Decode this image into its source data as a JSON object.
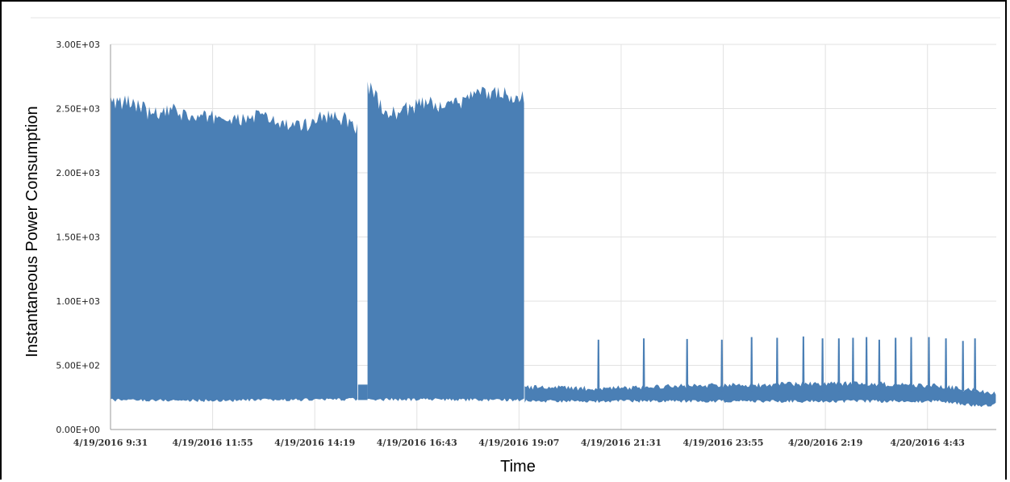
{
  "chart_data": {
    "type": "area",
    "title": "",
    "xlabel": "Time",
    "ylabel": "Instantaneous Power Consumption",
    "ylim": [
      0,
      3000
    ],
    "yticks": [
      "0.00E+00",
      "5.00E+02",
      "1.00E+03",
      "1.50E+03",
      "2.00E+03",
      "2.50E+03",
      "3.00E+03"
    ],
    "xlim": [
      "4/19/2016 9:31",
      "4/20/2016 6:20"
    ],
    "xticks": [
      "4/19/2016 9:31",
      "4/19/2016 11:55",
      "4/19/2016 14:19",
      "4/19/2016 16:43",
      "4/19/2016 19:07",
      "4/19/2016 21:31",
      "4/19/2016 23:55",
      "4/20/2016 2:19",
      "4/20/2016 4:43"
    ],
    "grid": true,
    "color": "#4a7fb5",
    "series": [
      {
        "upper_envelope": {
          "x": [
            "4/19/2016 9:31",
            "4/19/2016 9:45",
            "4/19/2016 10:00",
            "4/19/2016 10:30",
            "4/19/2016 11:00",
            "4/19/2016 11:30",
            "4/19/2016 12:00",
            "4/19/2016 12:30",
            "4/19/2016 13:00",
            "4/19/2016 13:30",
            "4/19/2016 14:00",
            "4/19/2016 14:30",
            "4/19/2016 15:00",
            "4/19/2016 15:20",
            "4/19/2016 15:30",
            "4/19/2016 15:45",
            "4/19/2016 16:00",
            "4/19/2016 16:30",
            "4/19/2016 17:00",
            "4/19/2016 17:30",
            "4/19/2016 18:00",
            "4/19/2016 18:30",
            "4/19/2016 19:00",
            "4/19/2016 19:15"
          ],
          "y": [
            2560,
            2540,
            2560,
            2450,
            2480,
            2420,
            2440,
            2400,
            2450,
            2380,
            2350,
            2450,
            2420,
            2350,
            2700,
            2600,
            2450,
            2500,
            2550,
            2500,
            2600,
            2620,
            2600,
            2580
          ]
        },
        "lower_envelope": {
          "x": [
            "4/19/2016 9:31",
            "4/19/2016 12:00",
            "4/19/2016 15:00",
            "4/19/2016 19:15"
          ],
          "y": [
            230,
            225,
            235,
            230
          ]
        },
        "gap": {
          "from": "4/19/2016 15:20",
          "to": "4/19/2016 15:30"
        },
        "baseline": {
          "x": [
            "4/19/2016 19:15",
            "4/19/2016 21:00",
            "4/19/2016 23:00",
            "4/20/2016 1:00",
            "4/20/2016 3:00",
            "4/20/2016 5:00",
            "4/20/2016 6:00",
            "4/20/2016 6:20"
          ],
          "low": [
            220,
            220,
            220,
            220,
            220,
            220,
            180,
            200
          ],
          "high": [
            330,
            320,
            340,
            350,
            360,
            340,
            300,
            280
          ]
        },
        "spikes": {
          "x": [
            "4/19/2016 20:59",
            "4/19/2016 22:03",
            "4/19/2016 23:04",
            "4/19/2016 23:53",
            "4/20/2016 0:35",
            "4/20/2016 1:11",
            "4/20/2016 1:48",
            "4/20/2016 2:15",
            "4/20/2016 2:38",
            "4/20/2016 2:58",
            "4/20/2016 3:17",
            "4/20/2016 3:35",
            "4/20/2016 3:58",
            "4/20/2016 4:20",
            "4/20/2016 4:45",
            "4/20/2016 5:09",
            "4/20/2016 5:33",
            "4/20/2016 5:50"
          ],
          "y": [
            700,
            710,
            705,
            700,
            720,
            715,
            725,
            710,
            710,
            715,
            720,
            700,
            715,
            720,
            720,
            710,
            690,
            710
          ]
        }
      }
    ]
  }
}
